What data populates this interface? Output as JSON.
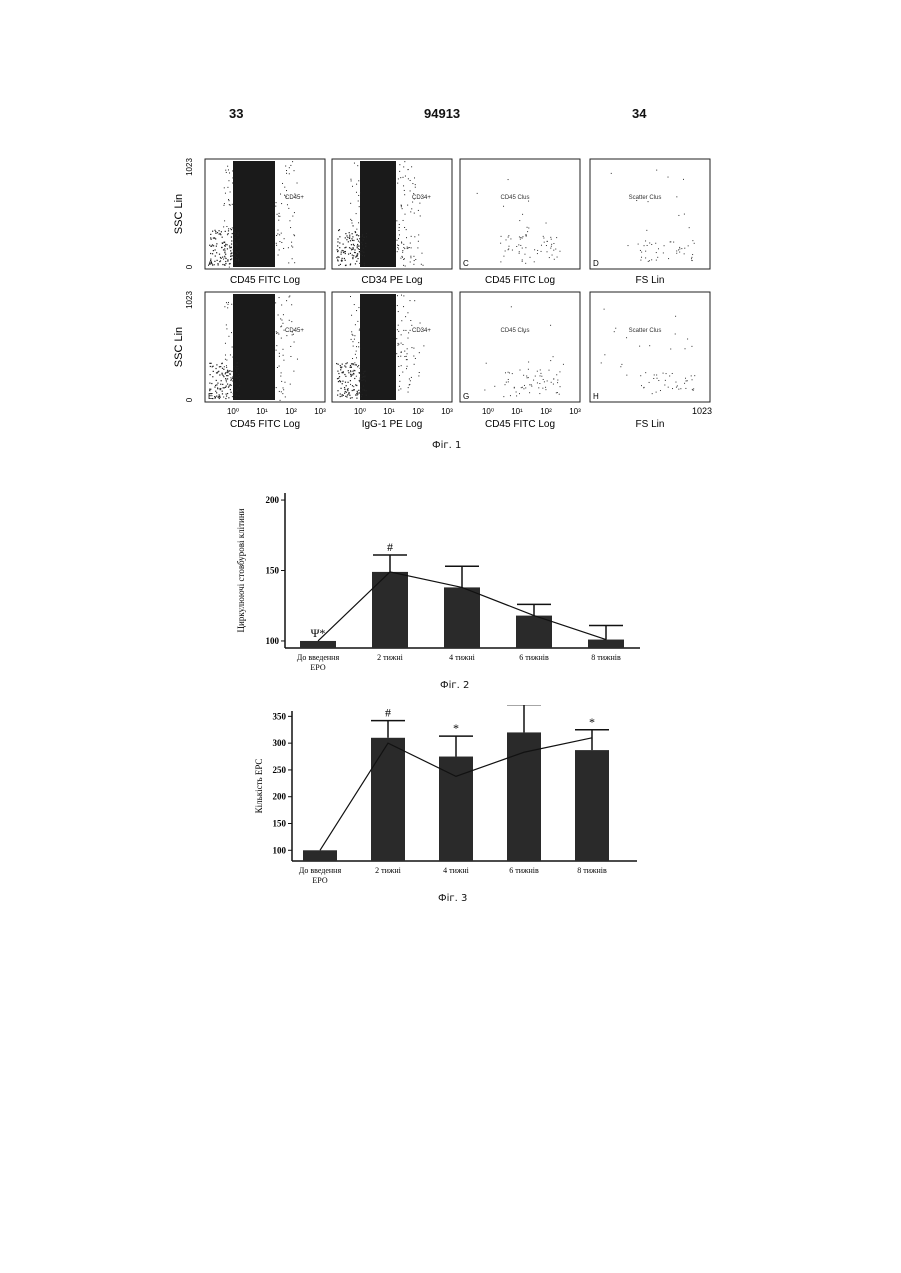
{
  "header": {
    "left_page": "33",
    "patent_number": "94913",
    "right_page": "34"
  },
  "fig1": {
    "caption": "Фіг. 1",
    "y_axis_label": "SSC Lin",
    "y_max_tick": "1023",
    "y_min_tick": "0",
    "x_max_tick": "1023",
    "rows": [
      {
        "panels": [
          {
            "letter": "A",
            "gate": "CD45+",
            "xlabel": "CD45 FITC Log",
            "ticks": []
          },
          {
            "letter": "",
            "gate": "CD34+",
            "xlabel": "CD34 PE Log",
            "ticks": []
          },
          {
            "letter": "C",
            "gate": "CD45 Clus",
            "xlabel": "CD45 FITC Log",
            "ticks": []
          },
          {
            "letter": "D",
            "gate": "Scatter Clus",
            "xlabel": "FS Lin",
            "ticks": []
          }
        ]
      },
      {
        "panels": [
          {
            "letter": "E",
            "gate": "CD45+",
            "xlabel": "CD45 FITC Log",
            "ticks": [
              "10⁰",
              "10¹",
              "10²",
              "10³"
            ]
          },
          {
            "letter": "",
            "gate": "CD34+",
            "xlabel": "IgG-1 PE Log",
            "ticks": [
              "10⁰",
              "10¹",
              "10²",
              "10³"
            ]
          },
          {
            "letter": "G",
            "gate": "CD45 Clus",
            "xlabel": "CD45 FITC Log",
            "ticks": [
              "10⁰",
              "10¹",
              "10²",
              "10³"
            ]
          },
          {
            "letter": "H",
            "gate": "Scatter Clus",
            "xlabel": "FS Lin",
            "ticks": []
          }
        ]
      }
    ]
  },
  "chart_data": [
    {
      "type": "bar",
      "caption": "Фіг. 2",
      "ylabel": "Циркулюючі стовбурові клітини",
      "categories": [
        "До введення ЕРО",
        "2 тижні",
        "4 тижні",
        "6 тижнів",
        "8 тижнів"
      ],
      "values": [
        100,
        149,
        138,
        118,
        101
      ],
      "errors": [
        0,
        12,
        15,
        8,
        10
      ],
      "annotations": [
        "Ψ*",
        "#",
        "",
        "",
        ""
      ],
      "yticks": [
        "100",
        "150",
        "200"
      ],
      "ylim": [
        95,
        205
      ],
      "line_overlay": true
    },
    {
      "type": "bar",
      "caption": "Фіг. 3",
      "ylabel": "Кількість EPC",
      "categories": [
        "До введення ЕРО",
        "2 тижні",
        "4 тижні",
        "6 тижнів",
        "8 тижнів"
      ],
      "values": [
        100,
        310,
        275,
        320,
        287
      ],
      "errors": [
        0,
        32,
        38,
        52,
        38
      ],
      "annotations": [
        "",
        "#",
        "*",
        "*",
        "*"
      ],
      "line_values": [
        100,
        300,
        238,
        283,
        310
      ],
      "yticks": [
        "100",
        "150",
        "200",
        "250",
        "300",
        "350"
      ],
      "ylim": [
        80,
        360
      ],
      "line_overlay": true
    }
  ]
}
